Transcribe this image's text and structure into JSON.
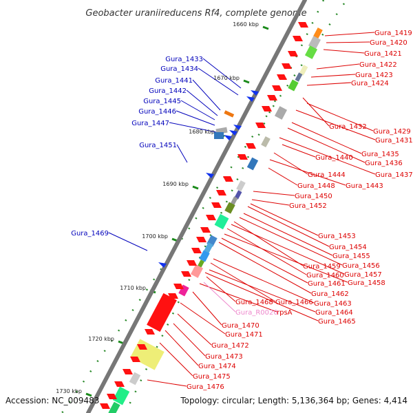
{
  "title": "Geobacter uraniireducens Rf4, complete genome",
  "footer": {
    "accession": "Accession: NC_009483",
    "topology": "Topology: circular; Length: 5,136,364 bp; Genes: 4,414"
  },
  "colors": {
    "backbone": "#777777",
    "tick": "#1a8a1a",
    "forward_label": "#0000bb",
    "reverse_label": "#dd0000",
    "rna_label": "#ee88cc",
    "leader_line_forward": "#0000bb",
    "leader_line_reverse": "#dd0000"
  },
  "ticks": [
    {
      "label": "1660 kbp"
    },
    {
      "label": "1670 kbp"
    },
    {
      "label": "1680 kbp"
    },
    {
      "label": "1690 kbp"
    },
    {
      "label": "1700 kbp"
    },
    {
      "label": "1710 kbp"
    },
    {
      "label": "1720 kbp"
    },
    {
      "label": "1730 kbp"
    }
  ],
  "forward_genes": [
    "Gura_1433",
    "Gura_1434",
    "Gura_1441",
    "Gura_1442",
    "Gura_1445",
    "Gura_1446",
    "Gura_1447",
    "Gura_1451",
    "Gura_1469"
  ],
  "reverse_genes": [
    "Gura_1419",
    "Gura_1420",
    "Gura_1421",
    "Gura_1422",
    "Gura_1423",
    "Gura_1424",
    "Gura_1432",
    "Gura_1429",
    "Gura_1431",
    "Gura_1435",
    "Gura_1436",
    "Gura_1437",
    "Gura_1440",
    "Gura_1444",
    "Gura_1443",
    "Gura_1448",
    "Gura_1450",
    "Gura_1452",
    "Gura_1453",
    "Gura_1454",
    "Gura_1455",
    "Gura_1456",
    "Gura_1459",
    "Gura_1457",
    "Gura_1460",
    "Gura_1458",
    "Gura_1461",
    "Gura_1462",
    "Gura_1466",
    "Gura_1463",
    "Gura_1468",
    "Gura_1464",
    "rpsA",
    "Gura_1465",
    "Gura_1470",
    "Gura_1471",
    "Gura_1472",
    "Gura_1473",
    "Gura_1474",
    "Gura_1475",
    "Gura_1476"
  ],
  "rna_genes": [
    "Gura_R0020"
  ]
}
